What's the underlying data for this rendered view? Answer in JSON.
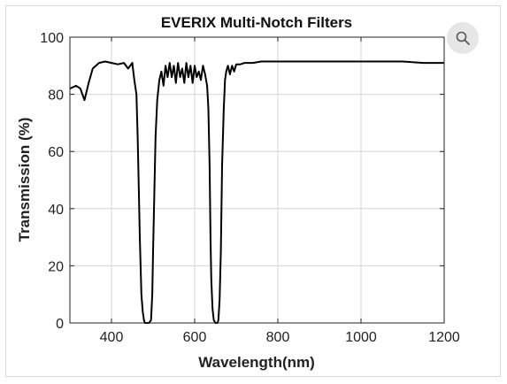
{
  "zoom_button": {
    "icon": "magnifier-icon"
  },
  "chart_data": {
    "type": "line",
    "title": "EVERIX Multi-Notch Filters",
    "xlabel": "Wavelength(nm)",
    "ylabel": "Transmission (%)",
    "xlim": [
      300,
      1200
    ],
    "ylim": [
      0,
      100
    ],
    "xticks": [
      400,
      600,
      800,
      1000,
      1200
    ],
    "yticks": [
      0,
      20,
      40,
      60,
      80,
      100
    ],
    "grid": true,
    "line_color": "#000000",
    "series": [
      {
        "x": [
          300,
          315,
          325,
          330,
          335,
          345,
          355,
          370,
          385,
          400,
          415,
          430,
          440,
          450,
          455,
          460,
          463,
          466,
          468,
          470,
          472,
          475,
          478,
          480,
          483,
          486,
          490,
          495,
          498,
          500,
          503,
          506,
          510,
          515,
          520,
          525,
          530,
          535,
          540,
          545,
          550,
          555,
          560,
          565,
          570,
          575,
          580,
          585,
          590,
          595,
          600,
          605,
          610,
          615,
          620,
          625,
          630,
          633,
          636,
          638,
          640,
          643,
          646,
          650,
          655,
          657,
          660,
          663,
          666,
          670,
          673,
          676,
          680,
          685,
          690,
          695,
          700,
          710,
          720,
          740,
          760,
          800,
          850,
          900,
          950,
          1000,
          1050,
          1100,
          1150,
          1200
        ],
        "y": [
          82,
          83,
          82,
          80,
          78,
          84,
          89,
          91,
          91.5,
          91,
          90.5,
          91,
          89,
          91,
          85,
          80,
          65,
          45,
          30,
          20,
          10,
          4,
          1,
          0,
          0,
          0,
          0,
          1,
          10,
          25,
          45,
          65,
          78,
          85,
          88,
          83,
          90,
          86,
          91,
          86,
          90,
          84,
          91,
          86,
          89,
          84,
          91,
          86,
          90,
          84,
          90,
          86,
          88,
          85,
          90,
          87,
          83,
          75,
          55,
          30,
          15,
          5,
          1,
          0,
          0,
          1,
          8,
          25,
          55,
          75,
          85,
          88,
          90,
          87,
          90,
          88,
          90.5,
          90.5,
          91,
          91,
          91.5,
          91.5,
          91.5,
          91.5,
          91.5,
          91.5,
          91.5,
          91.5,
          91,
          91
        ]
      }
    ]
  }
}
